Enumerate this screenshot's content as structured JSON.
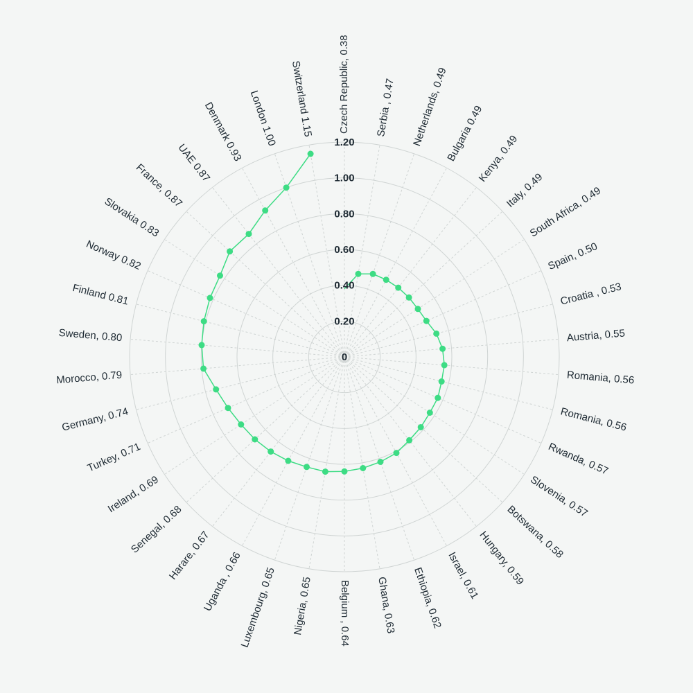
{
  "chart_data": {
    "type": "radar",
    "ylim": [
      0,
      1.2
    ],
    "ticks": [
      "0",
      "0.20",
      "0.40",
      "0.60",
      "0.80",
      "1.00",
      "1.20"
    ],
    "tick_values": [
      0,
      0.2,
      0.4,
      0.6,
      0.8,
      1.0,
      1.2
    ],
    "grid": true,
    "colors": {
      "series": "#3ddc84",
      "grid": "#cfd4d3",
      "spoke": "#cfd4d3",
      "text": "#1e2a33",
      "background": "#f4f6f5"
    },
    "categories": [
      "Czech Republic, 0.38",
      "Serbia , 0.47",
      "Netherlands, 0.49",
      "Bulgaria 0.49",
      "Kenya, 0.49",
      "Italy, 0.49",
      "South Africa, 0.49",
      "Spain, 0.50",
      "Croatia , 0.53",
      "Austria, 0.55",
      "Romania, 0.56",
      "Romania, 0.56",
      "Rwanda, 0.57",
      "Slovenia, 0.57",
      "Botswana, 0.58",
      "Hungary, 0.59",
      "Israel, 0.61",
      "Ethiopia, 0.62",
      "Ghana, 0.63",
      "Belgium , 0.64",
      "Nigeria, 0.65",
      "Luxembourg, 0.65",
      "Uganda , 0.66",
      "Harare, 0.67",
      "Senegal, 0.68",
      "Ireland, 0.69",
      "Turkey, 0.71",
      "Germany, 0.74",
      "Morocco, 0.79",
      "Sweden, 0.80",
      "Finland 0.81",
      "Norway 0.82",
      "Slovakia 0.83",
      "France, 0.87",
      "UAE 0.87",
      "Denmark 0.93",
      "London 1.00",
      "Switzerland 1.15"
    ],
    "values": [
      0.38,
      0.47,
      0.49,
      0.49,
      0.49,
      0.49,
      0.49,
      0.5,
      0.53,
      0.55,
      0.56,
      0.56,
      0.57,
      0.57,
      0.58,
      0.59,
      0.61,
      0.62,
      0.63,
      0.64,
      0.65,
      0.65,
      0.66,
      0.67,
      0.68,
      0.69,
      0.71,
      0.74,
      0.79,
      0.8,
      0.81,
      0.82,
      0.83,
      0.87,
      0.87,
      0.93,
      1.0,
      1.15
    ]
  }
}
